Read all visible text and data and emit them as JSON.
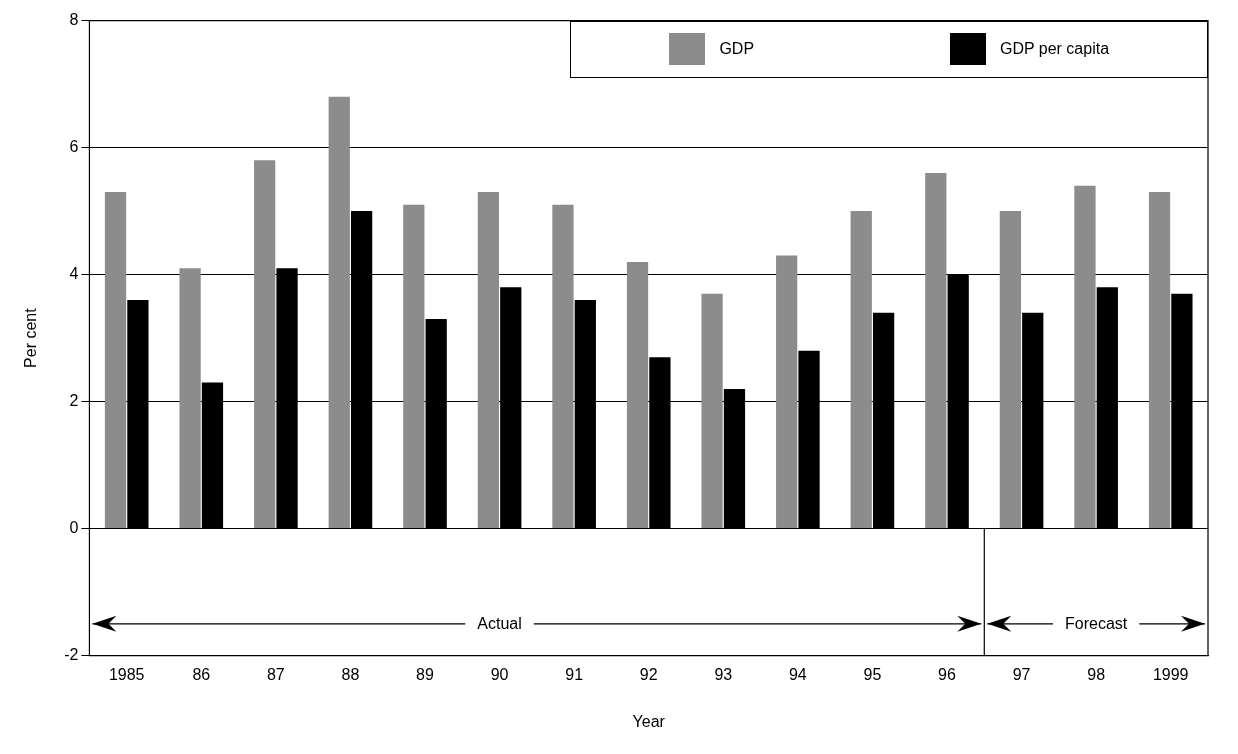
{
  "chart_data": {
    "type": "bar",
    "xlabel": "Year",
    "ylabel": "Per cent",
    "categories": [
      "1985",
      "86",
      "87",
      "88",
      "89",
      "90",
      "91",
      "92",
      "93",
      "94",
      "95",
      "96",
      "97",
      "98",
      "1999"
    ],
    "series": [
      {
        "name": "GDP",
        "color": "#8c8c8c",
        "values": [
          5.3,
          4.1,
          5.8,
          6.8,
          5.1,
          5.3,
          5.1,
          4.2,
          3.7,
          4.3,
          5.0,
          5.6,
          5.0,
          5.4,
          5.3
        ]
      },
      {
        "name": "GDP per capita",
        "color": "#000000",
        "values": [
          3.6,
          2.3,
          4.1,
          5.0,
          3.3,
          3.8,
          3.6,
          2.7,
          2.2,
          2.8,
          3.4,
          4.0,
          3.4,
          3.8,
          3.7
        ]
      }
    ],
    "ylim": [
      -2,
      8
    ],
    "yticks": [
      -2,
      0,
      2,
      4,
      6,
      8
    ],
    "grid": "y",
    "legend": "top right",
    "annotations": [
      "Actual",
      "Forecast"
    ]
  }
}
